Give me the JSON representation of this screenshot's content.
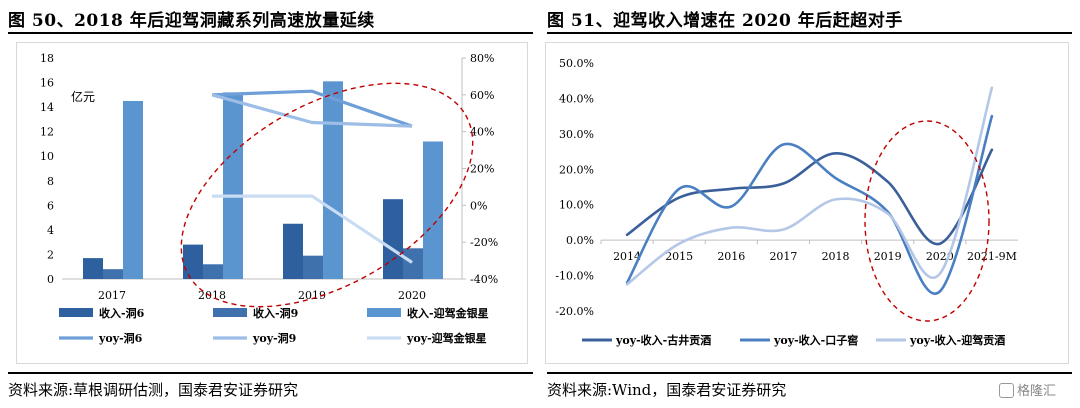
{
  "titles": {
    "left": "图 50、2018 年后迎驾洞藏系列高速放量延续",
    "right": "图 51、迎驾收入增速在 2020 年后赶超对手"
  },
  "sources": {
    "left": "资料来源:草根调研估测，国泰君安证券研究",
    "right": "资料来源:Wind，国泰君安证券研究"
  },
  "watermark": "格隆汇",
  "chart_data": [
    {
      "type": "bar",
      "categories": [
        "2017",
        "2018",
        "2019",
        "2020"
      ],
      "unit_label": "亿元",
      "ylim": [
        0,
        18
      ],
      "yticks": [
        "0",
        "2",
        "4",
        "6",
        "8",
        "10",
        "12",
        "14",
        "16",
        "18"
      ],
      "y2lim": [
        -40,
        80
      ],
      "y2ticks": [
        "-40%",
        "-20%",
        "0%",
        "20%",
        "40%",
        "60%",
        "80%"
      ],
      "series": [
        {
          "name": "收入-洞6",
          "kind": "bar",
          "axis": "left",
          "color": "#2e5f9e",
          "values": [
            1.7,
            2.8,
            4.5,
            6.5
          ]
        },
        {
          "name": "收入-洞9",
          "kind": "bar",
          "axis": "left",
          "color": "#3f72ad",
          "values": [
            0.8,
            1.2,
            1.9,
            2.5
          ]
        },
        {
          "name": "收入-迎驾金银星",
          "kind": "bar",
          "axis": "left",
          "color": "#5b95cf",
          "values": [
            14.5,
            15.2,
            16.1,
            11.2
          ]
        },
        {
          "name": "yoy-洞6",
          "kind": "line",
          "axis": "right",
          "color": "#6f9fd8",
          "values": [
            null,
            60,
            62,
            43
          ]
        },
        {
          "name": "yoy-洞9",
          "kind": "line",
          "axis": "right",
          "color": "#9bbde6",
          "values": [
            null,
            60,
            45,
            43
          ]
        },
        {
          "name": "yoy-迎驾金银星",
          "kind": "line",
          "axis": "right",
          "color": "#c9dcf3",
          "values": [
            null,
            5,
            5,
            -31
          ]
        }
      ],
      "grid": false,
      "legend_position": "bottom"
    },
    {
      "type": "line",
      "categories": [
        "2014",
        "2015",
        "2016",
        "2017",
        "2018",
        "2019",
        "2020",
        "2021-9M"
      ],
      "ylim": [
        -20,
        50
      ],
      "yticks": [
        "-20.0%",
        "-10.0%",
        "0.0%",
        "10.0%",
        "20.0%",
        "30.0%",
        "40.0%",
        "50.0%"
      ],
      "series": [
        {
          "name": "yoy-收入-古井贡酒",
          "color": "#3a5f9a",
          "values": [
            1.5,
            12,
            14.5,
            16,
            24.5,
            16.5,
            -1,
            25.5
          ]
        },
        {
          "name": "yoy-收入-口子窖",
          "color": "#4a7fc2",
          "values": [
            -12,
            14.5,
            9.5,
            27,
            17.5,
            8,
            -14.5,
            35
          ]
        },
        {
          "name": "yoy-收入-迎驾贡酒",
          "color": "#b4c7e7",
          "values": [
            -12.5,
            -1,
            3.5,
            3,
            11.5,
            7.5,
            -9.5,
            43
          ]
        }
      ],
      "grid": false,
      "legend_position": "bottom"
    }
  ]
}
